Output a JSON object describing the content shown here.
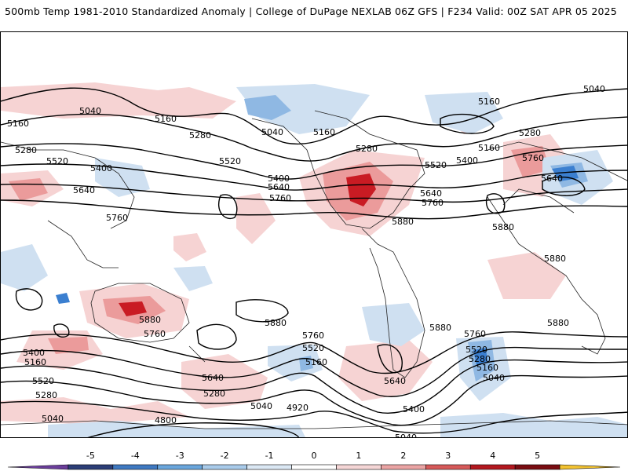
{
  "header": {
    "left_title": "500mb Temp 1981-2010 Standardized Anomaly | College of DuPage NEXLAB",
    "right_title": "06Z GFS | F234 Valid: 00Z SAT APR 05 2025"
  },
  "contour_labels": [
    "5040",
    "5160",
    "5280",
    "5400",
    "5520",
    "5640",
    "5760",
    "5880",
    "4920",
    "4800"
  ],
  "colorbar": {
    "tick_labels": [
      "-5",
      "-4",
      "-3",
      "-2",
      "-1",
      "0",
      "1",
      "2",
      "3",
      "4",
      "5"
    ],
    "colors": [
      "#6a3d9a",
      "#2c3e77",
      "#3f79c1",
      "#6aa6dc",
      "#a9cbea",
      "#dbe8f4",
      "#ffffff",
      "#f5d6d6",
      "#eaa4a4",
      "#d65a5a",
      "#b3181f",
      "#7a0d12",
      "#f2c230"
    ]
  },
  "anomaly_palette": {
    "warm_light": "#f6d3d3",
    "warm_mid": "#eb9b9b",
    "warm_strong": "#c91b23",
    "cold_light": "#cfe0f1",
    "cold_mid": "#8fb8e3",
    "cold_strong": "#3b7fd0"
  }
}
